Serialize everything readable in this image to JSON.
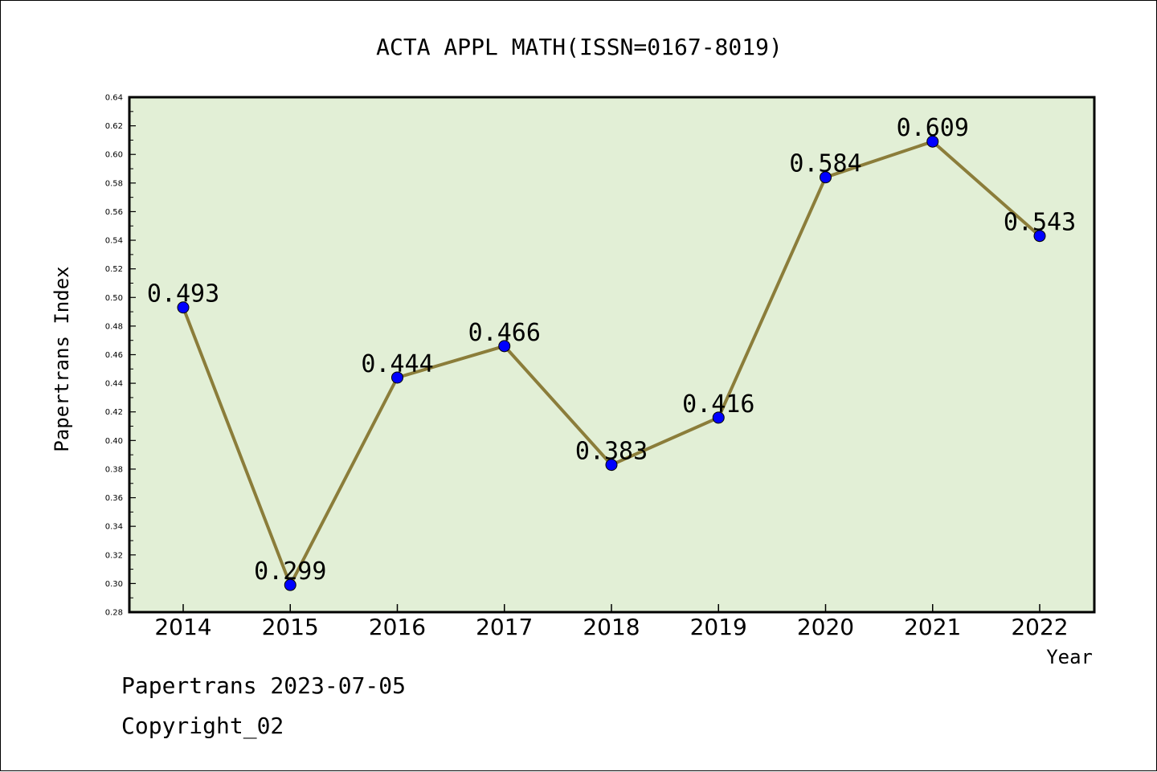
{
  "chart_data": {
    "type": "line",
    "title": "ACTA APPL MATH(ISSN=0167-8019)",
    "xlabel": "Year",
    "ylabel": "Papertrans Index",
    "categories": [
      "2014",
      "2015",
      "2016",
      "2017",
      "2018",
      "2019",
      "2020",
      "2021",
      "2022"
    ],
    "series": [
      {
        "values": [
          0.493,
          0.299,
          0.444,
          0.466,
          0.383,
          0.416,
          0.584,
          0.609,
          0.543
        ]
      }
    ],
    "data_labels": [
      "0.493",
      "0.299",
      "0.444",
      "0.466",
      "0.383",
      "0.416",
      "0.584",
      "0.609",
      "0.543"
    ],
    "ylim": [
      0.28,
      0.64
    ],
    "yticks": [
      "0.28",
      "0.30",
      "0.32",
      "0.34",
      "0.36",
      "0.38",
      "0.40",
      "0.42",
      "0.44",
      "0.46",
      "0.48",
      "0.50",
      "0.52",
      "0.54",
      "0.56",
      "0.58",
      "0.60",
      "0.62",
      "0.64"
    ],
    "grid": false,
    "legend": "none",
    "colors": {
      "plot_background": "#e2efd6",
      "line": "#8b7d3a",
      "marker": "#0000ff"
    }
  },
  "footer": {
    "date_line": "Papertrans 2023-07-05",
    "copyright": "Copyright_02"
  }
}
